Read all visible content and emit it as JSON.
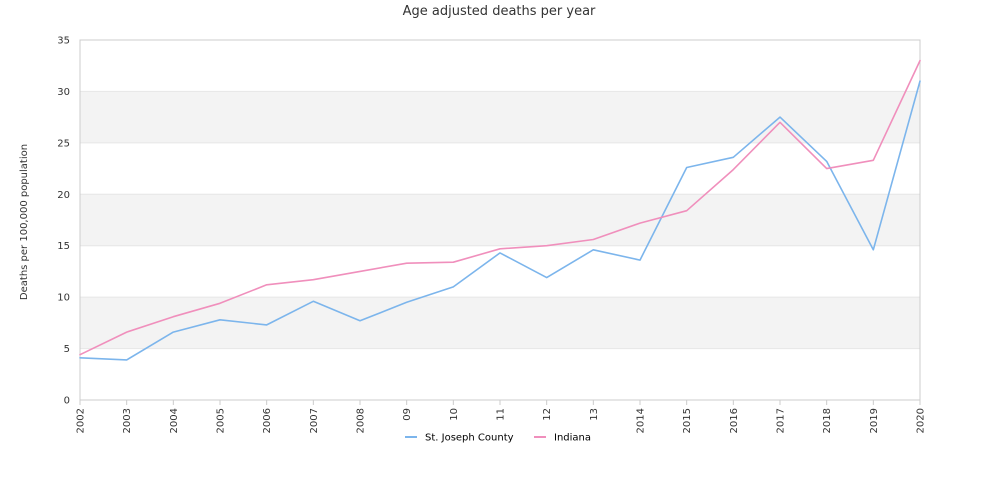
{
  "chart_data": {
    "type": "line",
    "title": "Age adjusted deaths per year",
    "xlabel": "",
    "ylabel": "Deaths per 100,000 population",
    "categories": [
      "2002",
      "2003",
      "2004",
      "2005",
      "2006",
      "2007",
      "2008",
      "09",
      "10",
      "11",
      "12",
      "13",
      "2014",
      "2015",
      "2016",
      "2017",
      "2018",
      "2019",
      "2020"
    ],
    "ylim": [
      0,
      35
    ],
    "yticks": [
      0,
      5,
      10,
      15,
      20,
      25,
      30,
      35
    ],
    "grid": "alternating horizontal bands",
    "legend_position": "bottom",
    "series": [
      {
        "name": "St. Joseph County",
        "color": "#7cb5ec",
        "values": [
          4.1,
          3.9,
          6.6,
          7.8,
          7.3,
          9.6,
          7.7,
          9.5,
          11.0,
          14.3,
          11.9,
          14.6,
          13.6,
          22.6,
          23.6,
          27.5,
          23.2,
          14.6,
          31.0
        ]
      },
      {
        "name": "Indiana",
        "color": "#f08fbc",
        "values": [
          4.4,
          6.6,
          8.1,
          9.4,
          11.2,
          11.7,
          12.5,
          13.3,
          13.4,
          14.7,
          15.0,
          15.6,
          17.2,
          18.4,
          22.4,
          27.0,
          22.5,
          23.3,
          33.0
        ]
      }
    ]
  }
}
